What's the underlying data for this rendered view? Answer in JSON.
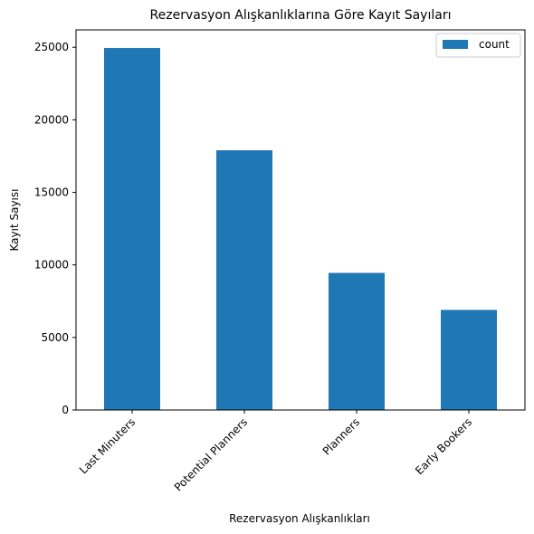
{
  "chart_data": {
    "type": "bar",
    "title": "Rezervasyon Alışkanlıklarına Göre Kayıt Sayıları",
    "xlabel": "Rezervasyon Alışkanlıkları",
    "ylabel": "Kayıt Sayısı",
    "categories": [
      "Last Minuters",
      "Potential Planners",
      "Planners",
      "Early Bookers"
    ],
    "series": [
      {
        "name": "count",
        "values": [
          24950,
          17900,
          9450,
          6900
        ]
      }
    ],
    "ylim": [
      0,
      26200
    ],
    "yticks": [
      0,
      5000,
      10000,
      15000,
      20000,
      25000
    ],
    "grid": false,
    "legend": "top-right",
    "colors": {
      "bar": "#1f77b4",
      "axis": "#000000",
      "legend_border": "#cccccc"
    }
  }
}
